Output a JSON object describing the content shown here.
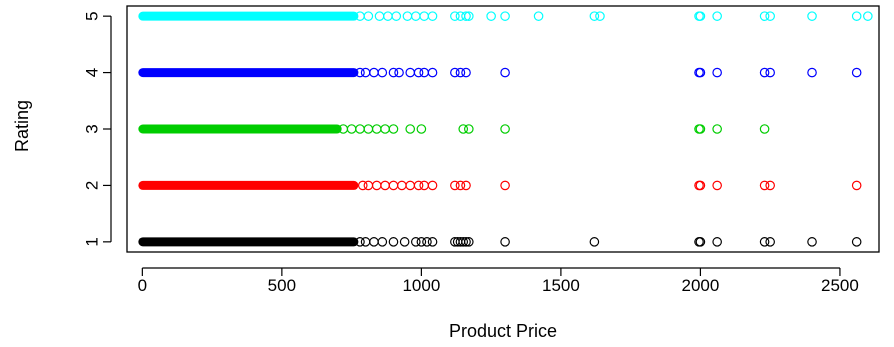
{
  "chart_data": {
    "type": "scatter",
    "title": "",
    "xlabel": "Product Price",
    "ylabel": "Rating",
    "xlim": [
      -55,
      2640
    ],
    "ylim": [
      0.82,
      5.18
    ],
    "x_ticks": [
      0,
      500,
      1000,
      1500,
      2000,
      2500
    ],
    "x_tick_labels": [
      "0",
      "500",
      "1000",
      "1500",
      "2000",
      "2500"
    ],
    "y_ticks": [
      1,
      2,
      3,
      4,
      5
    ],
    "y_tick_labels": [
      "1",
      "2",
      "3",
      "4",
      "5"
    ],
    "grid": false,
    "marker": "open-circle",
    "series": [
      {
        "color": "#000000",
        "dense_x_range": [
          0,
          760
        ],
        "y": 1,
        "points": [
          {
            "x": 780,
            "y": 1
          },
          {
            "x": 800,
            "y": 1
          },
          {
            "x": 830,
            "y": 1
          },
          {
            "x": 860,
            "y": 1
          },
          {
            "x": 900,
            "y": 1
          },
          {
            "x": 940,
            "y": 1
          },
          {
            "x": 980,
            "y": 1
          },
          {
            "x": 1000,
            "y": 1
          },
          {
            "x": 1020,
            "y": 1
          },
          {
            "x": 1040,
            "y": 1
          },
          {
            "x": 1120,
            "y": 1
          },
          {
            "x": 1130,
            "y": 1
          },
          {
            "x": 1140,
            "y": 1
          },
          {
            "x": 1150,
            "y": 1
          },
          {
            "x": 1160,
            "y": 1
          },
          {
            "x": 1170,
            "y": 1
          },
          {
            "x": 1300,
            "y": 1
          },
          {
            "x": 1620,
            "y": 1
          },
          {
            "x": 1995,
            "y": 1
          },
          {
            "x": 2000,
            "y": 1
          },
          {
            "x": 2060,
            "y": 1
          },
          {
            "x": 2230,
            "y": 1
          },
          {
            "x": 2250,
            "y": 1
          },
          {
            "x": 2400,
            "y": 1
          },
          {
            "x": 2560,
            "y": 1
          }
        ]
      },
      {
        "color": "#ff0000",
        "dense_x_range": [
          0,
          760
        ],
        "y": 2,
        "points": [
          {
            "x": 790,
            "y": 2
          },
          {
            "x": 810,
            "y": 2
          },
          {
            "x": 840,
            "y": 2
          },
          {
            "x": 870,
            "y": 2
          },
          {
            "x": 900,
            "y": 2
          },
          {
            "x": 930,
            "y": 2
          },
          {
            "x": 960,
            "y": 2
          },
          {
            "x": 990,
            "y": 2
          },
          {
            "x": 1010,
            "y": 2
          },
          {
            "x": 1040,
            "y": 2
          },
          {
            "x": 1120,
            "y": 2
          },
          {
            "x": 1140,
            "y": 2
          },
          {
            "x": 1160,
            "y": 2
          },
          {
            "x": 1300,
            "y": 2
          },
          {
            "x": 1995,
            "y": 2
          },
          {
            "x": 2000,
            "y": 2
          },
          {
            "x": 2060,
            "y": 2
          },
          {
            "x": 2230,
            "y": 2
          },
          {
            "x": 2250,
            "y": 2
          },
          {
            "x": 2560,
            "y": 2
          }
        ]
      },
      {
        "color": "#00cd00",
        "dense_x_range": [
          0,
          700
        ],
        "y": 3,
        "points": [
          {
            "x": 720,
            "y": 3
          },
          {
            "x": 750,
            "y": 3
          },
          {
            "x": 780,
            "y": 3
          },
          {
            "x": 810,
            "y": 3
          },
          {
            "x": 840,
            "y": 3
          },
          {
            "x": 870,
            "y": 3
          },
          {
            "x": 900,
            "y": 3
          },
          {
            "x": 960,
            "y": 3
          },
          {
            "x": 1000,
            "y": 3
          },
          {
            "x": 1150,
            "y": 3
          },
          {
            "x": 1170,
            "y": 3
          },
          {
            "x": 1300,
            "y": 3
          },
          {
            "x": 1995,
            "y": 3
          },
          {
            "x": 2000,
            "y": 3
          },
          {
            "x": 2060,
            "y": 3
          },
          {
            "x": 2230,
            "y": 3
          }
        ]
      },
      {
        "color": "#0000ff",
        "dense_x_range": [
          0,
          760
        ],
        "y": 4,
        "points": [
          {
            "x": 780,
            "y": 4
          },
          {
            "x": 800,
            "y": 4
          },
          {
            "x": 830,
            "y": 4
          },
          {
            "x": 860,
            "y": 4
          },
          {
            "x": 900,
            "y": 4
          },
          {
            "x": 920,
            "y": 4
          },
          {
            "x": 960,
            "y": 4
          },
          {
            "x": 990,
            "y": 4
          },
          {
            "x": 1010,
            "y": 4
          },
          {
            "x": 1040,
            "y": 4
          },
          {
            "x": 1120,
            "y": 4
          },
          {
            "x": 1140,
            "y": 4
          },
          {
            "x": 1160,
            "y": 4
          },
          {
            "x": 1300,
            "y": 4
          },
          {
            "x": 1995,
            "y": 4
          },
          {
            "x": 2000,
            "y": 4
          },
          {
            "x": 2060,
            "y": 4
          },
          {
            "x": 2230,
            "y": 4
          },
          {
            "x": 2250,
            "y": 4
          },
          {
            "x": 2400,
            "y": 4
          },
          {
            "x": 2560,
            "y": 4
          }
        ]
      },
      {
        "color": "#00ffff",
        "dense_x_range": [
          0,
          760
        ],
        "y": 5,
        "points": [
          {
            "x": 780,
            "y": 5
          },
          {
            "x": 810,
            "y": 5
          },
          {
            "x": 850,
            "y": 5
          },
          {
            "x": 880,
            "y": 5
          },
          {
            "x": 910,
            "y": 5
          },
          {
            "x": 950,
            "y": 5
          },
          {
            "x": 980,
            "y": 5
          },
          {
            "x": 1010,
            "y": 5
          },
          {
            "x": 1040,
            "y": 5
          },
          {
            "x": 1120,
            "y": 5
          },
          {
            "x": 1140,
            "y": 5
          },
          {
            "x": 1160,
            "y": 5
          },
          {
            "x": 1170,
            "y": 5
          },
          {
            "x": 1250,
            "y": 5
          },
          {
            "x": 1300,
            "y": 5
          },
          {
            "x": 1420,
            "y": 5
          },
          {
            "x": 1620,
            "y": 5
          },
          {
            "x": 1640,
            "y": 5
          },
          {
            "x": 1995,
            "y": 5
          },
          {
            "x": 2000,
            "y": 5
          },
          {
            "x": 2060,
            "y": 5
          },
          {
            "x": 2230,
            "y": 5
          },
          {
            "x": 2250,
            "y": 5
          },
          {
            "x": 2400,
            "y": 5
          },
          {
            "x": 2560,
            "y": 5
          },
          {
            "x": 2600,
            "y": 5
          }
        ]
      }
    ]
  }
}
